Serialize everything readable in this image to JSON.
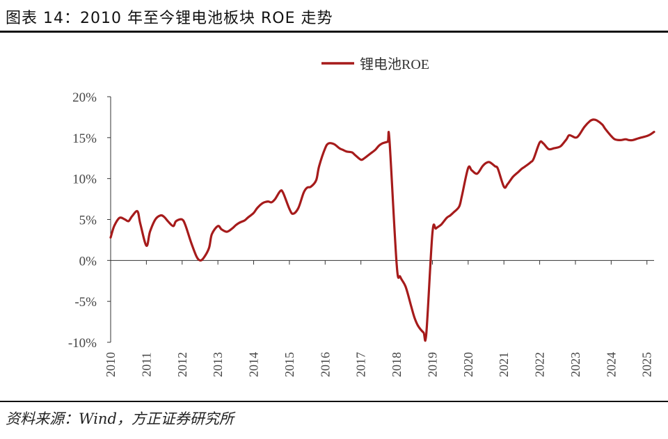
{
  "title": "图表 14：2010 年至今锂电池板块 ROE 走势",
  "source": "资料来源：Wind，方正证券研究所",
  "chart_data": {
    "type": "line",
    "title": "",
    "xlabel": "",
    "ylabel": "",
    "x_ticks": [
      "2010",
      "2011",
      "2012",
      "2013",
      "2014",
      "2015",
      "2016",
      "2017",
      "2018",
      "2019",
      "2020",
      "2021",
      "2022",
      "2023",
      "2024",
      "2025"
    ],
    "y_ticks": [
      "-10%",
      "-5%",
      "0%",
      "5%",
      "10%",
      "15%",
      "20%"
    ],
    "ylim": [
      -10,
      20
    ],
    "xlim": [
      2010,
      2025.2
    ],
    "grid": false,
    "legend": "top-center",
    "series": [
      {
        "name": "锂电池ROE",
        "color": "#a61b1b",
        "x": [
          2010.0,
          2010.1,
          2010.25,
          2010.4,
          2010.5,
          2010.6,
          2010.75,
          2010.83,
          2011.0,
          2011.1,
          2011.25,
          2011.4,
          2011.5,
          2011.6,
          2011.75,
          2011.83,
          2012.0,
          2012.1,
          2012.25,
          2012.4,
          2012.5,
          2012.6,
          2012.75,
          2012.83,
          2013.0,
          2013.1,
          2013.25,
          2013.4,
          2013.5,
          2013.6,
          2013.75,
          2013.83,
          2014.0,
          2014.1,
          2014.25,
          2014.4,
          2014.5,
          2014.6,
          2014.75,
          2014.83,
          2015.0,
          2015.1,
          2015.25,
          2015.4,
          2015.5,
          2015.6,
          2015.75,
          2015.83,
          2016.0,
          2016.1,
          2016.25,
          2016.4,
          2016.5,
          2016.6,
          2016.75,
          2016.83,
          2017.0,
          2017.1,
          2017.25,
          2017.4,
          2017.5,
          2017.6,
          2017.75,
          2017.8,
          2018.0,
          2018.1,
          2018.25,
          2018.4,
          2018.5,
          2018.6,
          2018.75,
          2018.83,
          2019.0,
          2019.1,
          2019.25,
          2019.4,
          2019.5,
          2019.6,
          2019.75,
          2019.83,
          2020.0,
          2020.1,
          2020.25,
          2020.4,
          2020.5,
          2020.6,
          2020.75,
          2020.83,
          2021.0,
          2021.1,
          2021.25,
          2021.4,
          2021.5,
          2021.6,
          2021.75,
          2021.83,
          2022.0,
          2022.1,
          2022.25,
          2022.4,
          2022.5,
          2022.6,
          2022.75,
          2022.83,
          2023.0,
          2023.1,
          2023.25,
          2023.4,
          2023.5,
          2023.6,
          2023.75,
          2023.83,
          2024.0,
          2024.1,
          2024.25,
          2024.4,
          2024.5,
          2024.6,
          2024.75,
          2024.83,
          2025.0,
          2025.1,
          2025.2
        ],
        "values": [
          2.8,
          4.2,
          5.2,
          5.0,
          4.8,
          5.4,
          6.0,
          4.5,
          1.8,
          3.5,
          5.0,
          5.5,
          5.3,
          4.8,
          4.2,
          4.8,
          5.0,
          4.2,
          2.2,
          0.5,
          0,
          0.3,
          1.5,
          3.2,
          4.2,
          3.8,
          3.5,
          3.9,
          4.3,
          4.6,
          4.9,
          5.2,
          5.8,
          6.4,
          7.0,
          7.2,
          7.1,
          7.5,
          8.5,
          8.2,
          6.3,
          5.7,
          6.4,
          8.3,
          8.9,
          9.0,
          9.8,
          11.5,
          13.7,
          14.3,
          14.2,
          13.7,
          13.5,
          13.3,
          13.2,
          12.9,
          12.3,
          12.5,
          13.0,
          13.5,
          14.0,
          14.3,
          14.5,
          14.6,
          -0.5,
          -2.0,
          -3.2,
          -5.5,
          -7.0,
          -8.0,
          -8.8,
          -8.9,
          3.3,
          3.9,
          4.4,
          5.2,
          5.5,
          5.9,
          6.6,
          8.0,
          11.3,
          11.0,
          10.6,
          11.5,
          11.9,
          12.0,
          11.5,
          11.2,
          9.0,
          9.3,
          10.2,
          10.8,
          11.2,
          11.5,
          12.0,
          12.4,
          14.4,
          14.3,
          13.6,
          13.7,
          13.8,
          14.0,
          14.8,
          15.3,
          15.0,
          15.3,
          16.3,
          17.0,
          17.2,
          17.1,
          16.6,
          16.1,
          15.2,
          14.8,
          14.7,
          14.8,
          14.7,
          14.7,
          14.9,
          15.0,
          15.2,
          15.4,
          15.7
        ]
      }
    ]
  }
}
